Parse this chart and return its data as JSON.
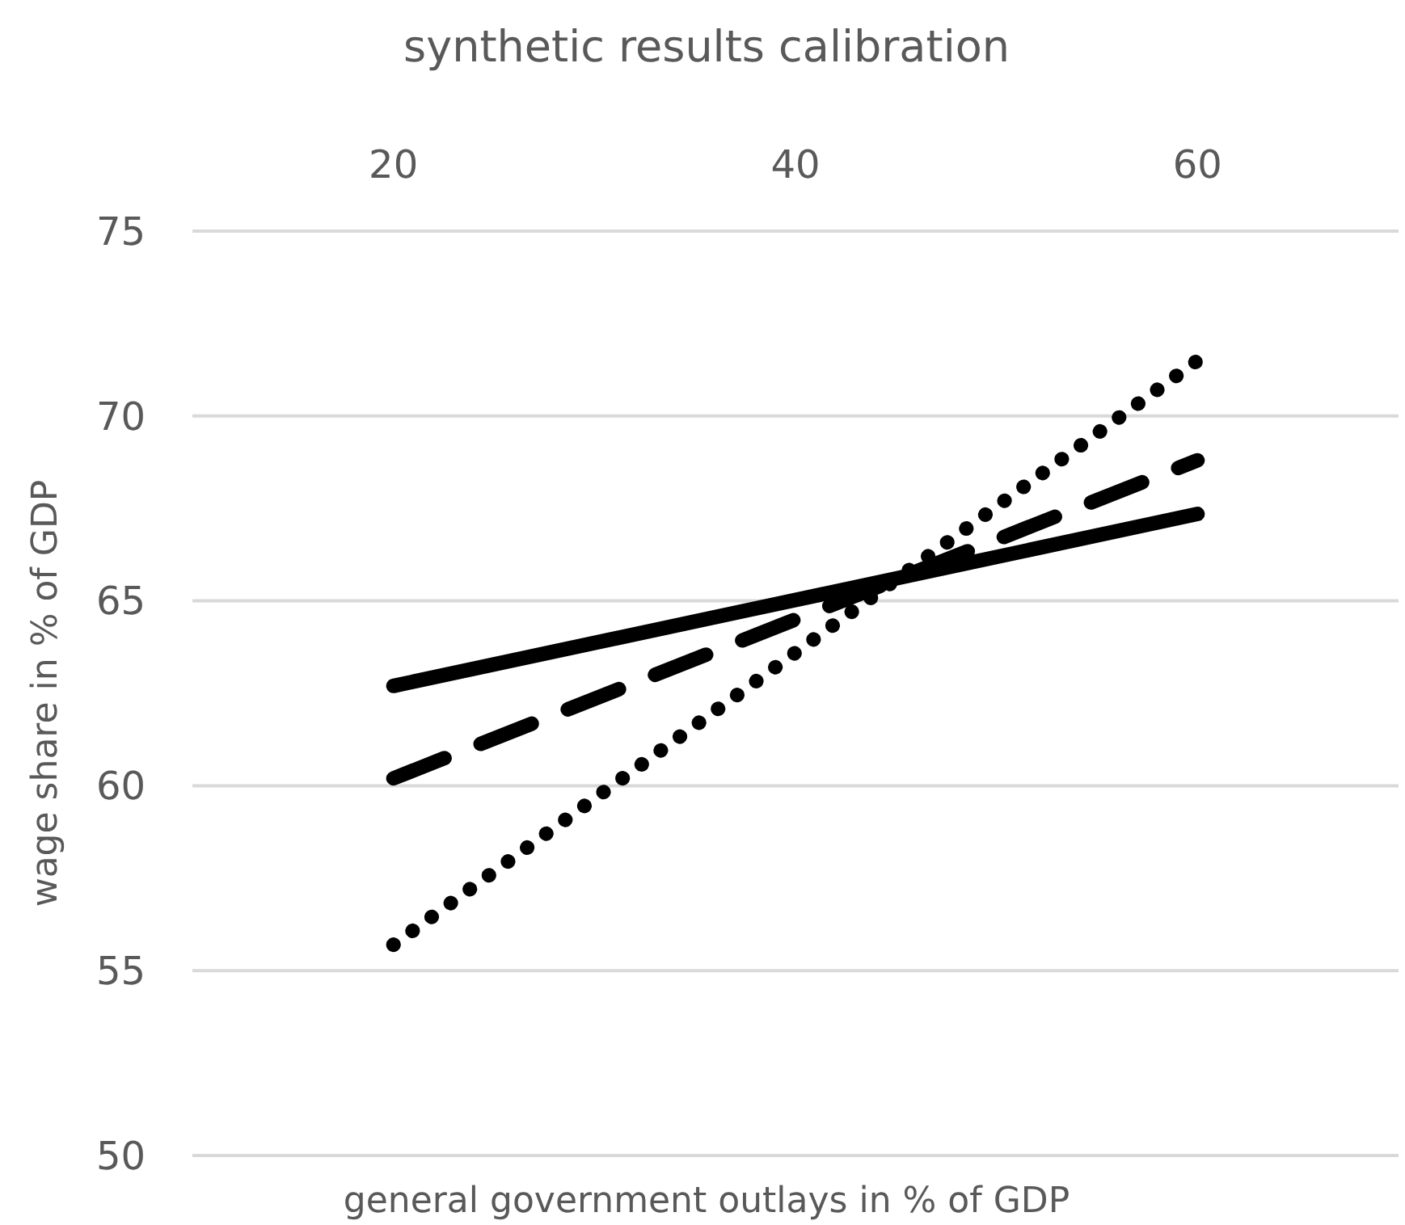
{
  "chart_data": {
    "type": "line",
    "title": "synthetic results calibration",
    "xlabel": "general government outlays in % of GDP",
    "ylabel": "wage share in % of GDP",
    "x": [
      20,
      60
    ],
    "series": [
      {
        "color": "#000000",
        "line_style": "solid",
        "values": [
          62.7,
          67.35
        ]
      },
      {
        "color": "#000000",
        "line_style": "dashed",
        "values": [
          60.2,
          68.8
        ]
      },
      {
        "color": "#000000",
        "line_style": "dotted",
        "values": [
          55.7,
          71.5
        ]
      }
    ],
    "xlim": [
      10,
      70
    ],
    "xticks": [
      20,
      40,
      60
    ],
    "ylim": [
      50,
      75
    ],
    "yticks": [
      50,
      55,
      60,
      65,
      70,
      75
    ],
    "grid": "y",
    "marker": "none"
  }
}
